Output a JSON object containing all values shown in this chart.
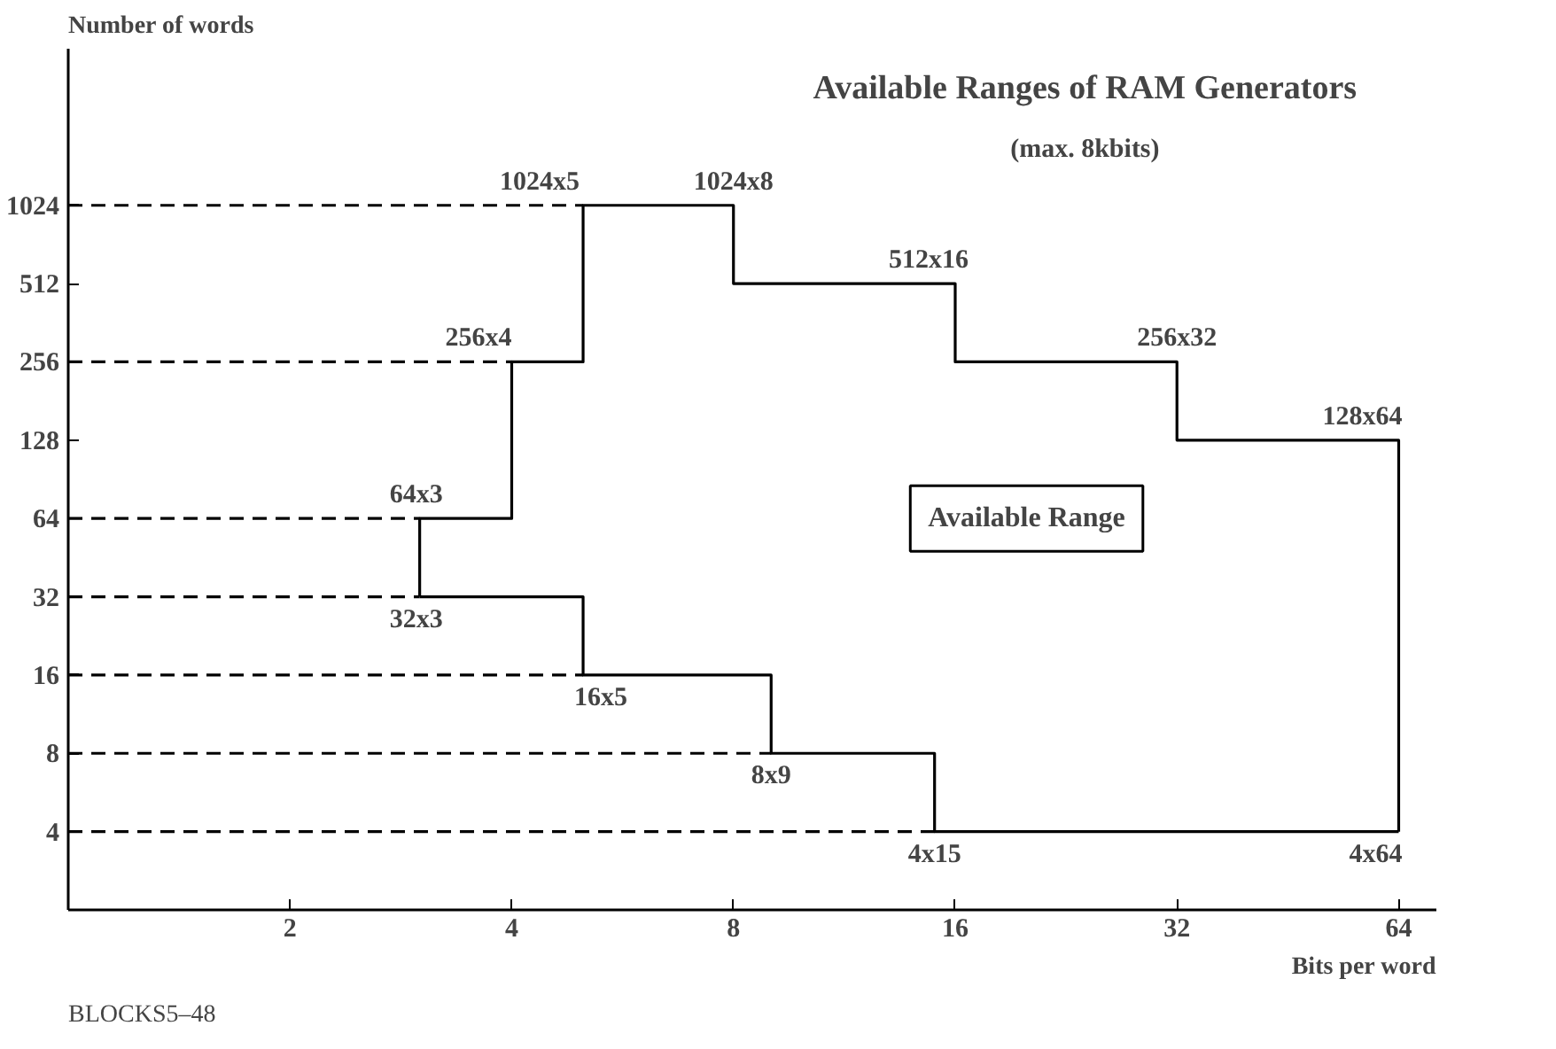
{
  "chart_data": {
    "type": "line",
    "title": "Available Ranges of RAM Generators",
    "subtitle": "(max. 8kbits)",
    "xlabel": "Bits per word",
    "ylabel": "Number of words",
    "log": "xy",
    "xlim": [
      1,
      72
    ],
    "ylim": [
      2,
      4096
    ],
    "xticks": [
      2,
      4,
      8,
      16,
      32,
      64
    ],
    "yticks": [
      4,
      8,
      16,
      32,
      64,
      128,
      256,
      512,
      1024
    ],
    "series": [
      {
        "color": "#000000",
        "line_style": "solid",
        "x": [
          3,
          3,
          4,
          4,
          5,
          5,
          8,
          8,
          16,
          16,
          32,
          32,
          64,
          64
        ],
        "values": [
          32,
          64,
          64,
          256,
          256,
          1024,
          1024,
          512,
          512,
          256,
          256,
          128,
          128,
          4
        ]
      },
      {
        "color": "#000000",
        "line_style": "solid",
        "x": [
          3,
          5,
          5,
          9,
          9,
          15,
          15,
          64
        ],
        "values": [
          32,
          32,
          16,
          16,
          8,
          8,
          4,
          4
        ]
      },
      {
        "color": "#000000",
        "line_style": "dashed",
        "x": [
          1,
          5
        ],
        "values": [
          1024,
          1024
        ]
      },
      {
        "color": "#000000",
        "line_style": "dashed",
        "x": [
          1,
          4
        ],
        "values": [
          256,
          256
        ]
      },
      {
        "color": "#000000",
        "line_style": "dashed",
        "x": [
          1,
          3
        ],
        "values": [
          64,
          64
        ]
      },
      {
        "color": "#000000",
        "line_style": "dashed",
        "x": [
          1,
          3
        ],
        "values": [
          32,
          32
        ]
      },
      {
        "color": "#000000",
        "line_style": "dashed",
        "x": [
          1,
          5
        ],
        "values": [
          16,
          16
        ]
      },
      {
        "color": "#000000",
        "line_style": "dashed",
        "x": [
          1,
          9
        ],
        "values": [
          8,
          8
        ]
      },
      {
        "color": "#000000",
        "line_style": "dashed",
        "x": [
          1,
          15
        ],
        "values": [
          4,
          4
        ]
      }
    ],
    "annotations": [
      {
        "text": "1024x5",
        "x": 5,
        "y": 1024
      },
      {
        "text": "1024x8",
        "x": 8,
        "y": 1024
      },
      {
        "text": "512x16",
        "x": 16,
        "y": 512
      },
      {
        "text": "256x32",
        "x": 32,
        "y": 256
      },
      {
        "text": "128x64",
        "x": 64,
        "y": 128
      },
      {
        "text": "256x4",
        "x": 4,
        "y": 256
      },
      {
        "text": "64x3",
        "x": 3,
        "y": 64
      },
      {
        "text": "32x3",
        "x": 3,
        "y": 32
      },
      {
        "text": "16x5",
        "x": 5,
        "y": 16
      },
      {
        "text": "8x9",
        "x": 9,
        "y": 8
      },
      {
        "text": "4x15",
        "x": 15,
        "y": 4
      },
      {
        "text": "4x64",
        "x": 64,
        "y": 4
      },
      "Available Range",
      "BLOCKS5–48"
    ]
  }
}
